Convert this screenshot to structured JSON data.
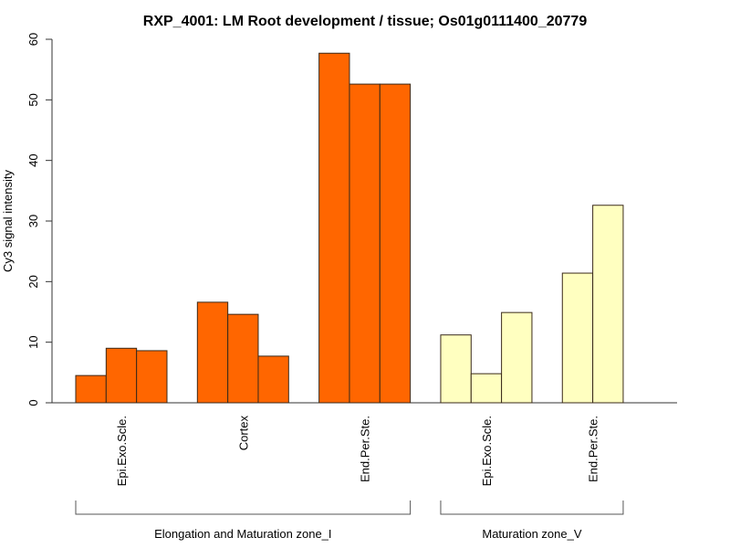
{
  "chart_data": {
    "type": "bar",
    "title": "RXP_4001: LM Root development / tissue; Os01g0111400_20779",
    "xlabel": "",
    "ylabel": "Cy3 signal intensity",
    "ylim": [
      0,
      60
    ],
    "yticks": [
      0,
      10,
      20,
      30,
      40,
      50,
      60
    ],
    "grid": false,
    "legend": "none",
    "groups": [
      {
        "name": "Elongation and Maturation zone_I",
        "color": "#FF6600",
        "categories": [
          {
            "label": "Epi.Exo.Scle.",
            "values": [
              4.5,
              9.0,
              8.6
            ]
          },
          {
            "label": "Cortex",
            "values": [
              16.6,
              14.6,
              7.7
            ]
          },
          {
            "label": "End.Per.Ste.",
            "values": [
              57.7,
              52.6,
              52.6
            ]
          }
        ]
      },
      {
        "name": "Maturation zone_V",
        "color": "#FFFFC0",
        "categories": [
          {
            "label": "Epi.Exo.Scle.",
            "values": [
              11.2,
              4.8,
              14.9
            ]
          },
          {
            "label": "End.Per.Ste.",
            "values": [
              21.4,
              32.6
            ]
          }
        ]
      }
    ]
  },
  "colors": {
    "bar_outline": "#3a2a1a",
    "axis": "#333333",
    "bracket": "#555555"
  }
}
